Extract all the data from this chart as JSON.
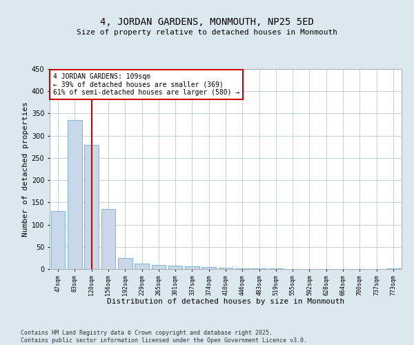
{
  "title": "4, JORDAN GARDENS, MONMOUTH, NP25 5ED",
  "subtitle": "Size of property relative to detached houses in Monmouth",
  "xlabel": "Distribution of detached houses by size in Monmouth",
  "ylabel": "Number of detached properties",
  "categories": [
    "47sqm",
    "83sqm",
    "120sqm",
    "156sqm",
    "192sqm",
    "229sqm",
    "265sqm",
    "301sqm",
    "337sqm",
    "374sqm",
    "410sqm",
    "446sqm",
    "483sqm",
    "519sqm",
    "555sqm",
    "592sqm",
    "628sqm",
    "664sqm",
    "700sqm",
    "737sqm",
    "773sqm"
  ],
  "values": [
    130,
    335,
    280,
    135,
    25,
    12,
    10,
    8,
    6,
    4,
    3,
    2,
    1,
    1,
    0,
    0,
    0,
    0,
    0,
    0,
    1
  ],
  "bar_color": "#c8d8e8",
  "bar_edge_color": "#6baed6",
  "vline_x_index": 2,
  "vline_color": "#cc0000",
  "annotation_text": "4 JORDAN GARDENS: 109sqm\n← 39% of detached houses are smaller (369)\n61% of semi-detached houses are larger (580) →",
  "annotation_box_color": "#cc0000",
  "ylim": [
    0,
    450
  ],
  "yticks": [
    0,
    50,
    100,
    150,
    200,
    250,
    300,
    350,
    400,
    450
  ],
  "footer": "Contains HM Land Registry data © Crown copyright and database right 2025.\nContains public sector information licensed under the Open Government Licence v3.0.",
  "bg_color": "#dce8f0",
  "plot_bg_color": "#ffffff",
  "title_fontsize": 10,
  "label_fontsize": 8,
  "footer_fontsize": 6
}
